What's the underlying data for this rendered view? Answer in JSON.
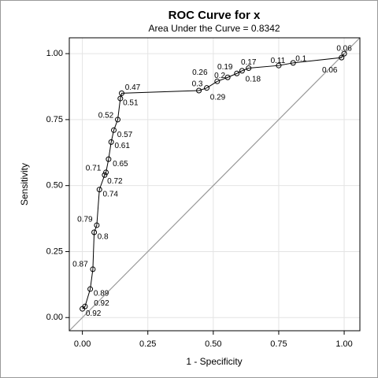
{
  "chart_data": {
    "type": "roc",
    "title": "ROC Curve for x",
    "subtitle": "Area Under the Curve = 0.8342",
    "x_label": "1 - Specificity",
    "y_label": "Sensitivity",
    "xlim": [
      -0.05,
      1.06
    ],
    "ylim": [
      -0.05,
      1.06
    ],
    "xticks": [
      {
        "value": 0,
        "label": "0.00"
      },
      {
        "value": 0.25,
        "label": "0.25"
      },
      {
        "value": 0.5,
        "label": "0.50"
      },
      {
        "value": 0.75,
        "label": "0.75"
      },
      {
        "value": 1,
        "label": "1.00"
      }
    ],
    "yticks": [
      {
        "value": 0,
        "label": "0.00"
      },
      {
        "value": 0.25,
        "label": "0.25"
      },
      {
        "value": 0.5,
        "label": "0.50"
      },
      {
        "value": 0.75,
        "label": "0.75"
      },
      {
        "value": 1,
        "label": "1.00"
      }
    ],
    "grid": true,
    "color": "#000000",
    "reference_color": "#999999",
    "x": [
      0.0,
      0.01,
      0.03,
      0.04,
      0.045,
      0.055,
      0.065,
      0.085,
      0.09,
      0.1,
      0.11,
      0.12,
      0.135,
      0.145,
      0.15,
      0.445,
      0.475,
      0.515,
      0.555,
      0.59,
      0.61,
      0.635,
      0.75,
      0.805,
      0.99,
      1.0
    ],
    "values": [
      0.033,
      0.042,
      0.108,
      0.183,
      0.323,
      0.35,
      0.485,
      0.54,
      0.55,
      0.6,
      0.665,
      0.71,
      0.75,
      0.83,
      0.85,
      0.86,
      0.87,
      0.895,
      0.91,
      0.925,
      0.935,
      0.945,
      0.955,
      0.965,
      0.985,
      1.0
    ],
    "point_labels": [
      "0.92",
      "0.92",
      "0.89",
      "0.87",
      "0.8",
      "0.79",
      "0.74",
      "0.72",
      "0.71",
      "0.65",
      "0.61",
      "0.57",
      "0.52",
      "0.51",
      "0.47",
      "0.3",
      "0.29",
      "0.26",
      "0.2",
      "0.19",
      "0.18",
      "0.17",
      "0.11",
      "0.1",
      "0.06",
      "0.06"
    ]
  }
}
